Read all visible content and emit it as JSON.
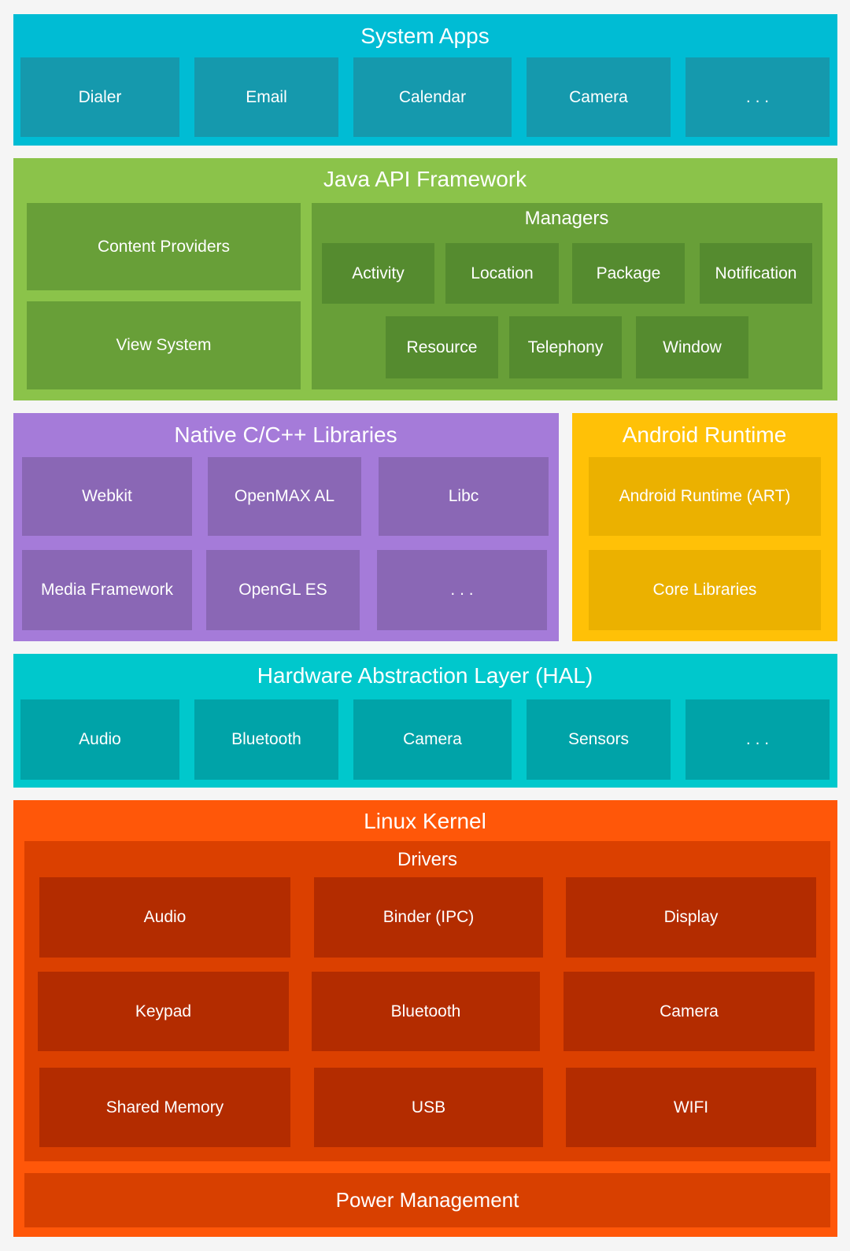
{
  "system_apps": {
    "title": "System Apps",
    "items": [
      "Dialer",
      "Email",
      "Calendar",
      "Camera",
      ". . ."
    ]
  },
  "java_api_framework": {
    "title": "Java API Framework",
    "content_providers": "Content Providers",
    "view_system": "View System",
    "managers": {
      "title": "Managers",
      "items": [
        "Activity",
        "Location",
        "Package",
        "Notification",
        "Resource",
        "Telephony",
        "Window"
      ]
    }
  },
  "native_libraries": {
    "title": "Native C/C++ Libraries",
    "items": [
      "Webkit",
      "OpenMAX AL",
      "Libc",
      "Media Framework",
      "OpenGL ES",
      ". . ."
    ]
  },
  "android_runtime": {
    "title": "Android Runtime",
    "items": [
      "Android Runtime (ART)",
      "Core Libraries"
    ]
  },
  "hal": {
    "title": "Hardware Abstraction Layer (HAL)",
    "items": [
      "Audio",
      "Bluetooth",
      "Camera",
      "Sensors",
      ". . ."
    ]
  },
  "linux_kernel": {
    "title": "Linux Kernel",
    "drivers": {
      "title": "Drivers",
      "items": [
        "Audio",
        "Binder (IPC)",
        "Display",
        "Keypad",
        "Bluetooth",
        "Camera",
        "Shared Memory",
        "USB",
        "WIFI"
      ]
    },
    "power_management": "Power Management"
  }
}
